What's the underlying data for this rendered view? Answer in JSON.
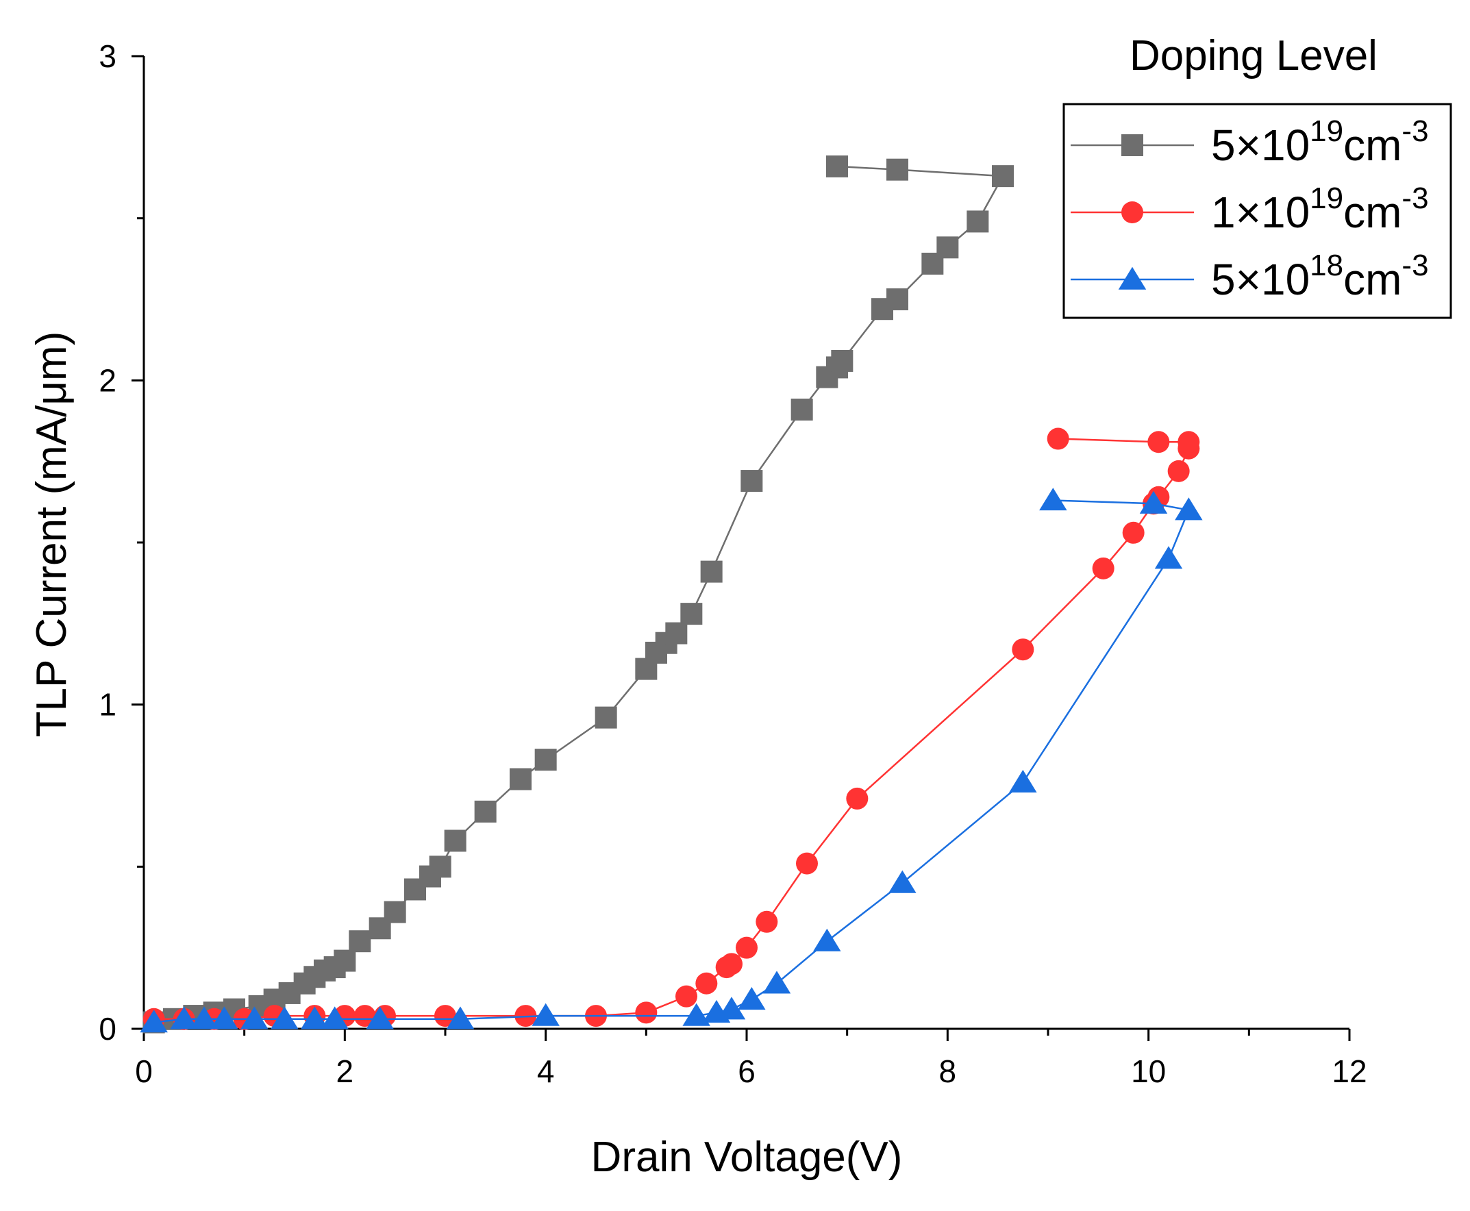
{
  "chart_data": {
    "type": "line",
    "title": "",
    "xlabel": "Drain Voltage(V)",
    "ylabel": "TLP Current (mA/μm)",
    "xlim": [
      0,
      12
    ],
    "ylim": [
      0,
      3
    ],
    "x_ticks": [
      "0",
      "2",
      "4",
      "6",
      "8",
      "10",
      "12"
    ],
    "y_ticks": [
      "0",
      "1",
      "2",
      "3"
    ],
    "legend": {
      "title": "Doping Level",
      "position": "top-right"
    },
    "series": [
      {
        "name": "5×10^19cm^-3",
        "label_base": "5×10",
        "label_exp": "19",
        "label_unit": "cm",
        "label_unit_exp": "-3",
        "color": "#6e6e6e",
        "marker": "square",
        "x": [
          0.1,
          0.3,
          0.5,
          0.7,
          0.9,
          1.15,
          1.3,
          1.45,
          1.6,
          1.7,
          1.8,
          1.9,
          2.0,
          2.15,
          2.35,
          2.5,
          2.7,
          2.85,
          2.95,
          3.1,
          3.4,
          3.75,
          4.0,
          4.6,
          5.0,
          5.1,
          5.2,
          5.3,
          5.45,
          5.65,
          6.05,
          6.55,
          6.8,
          6.9,
          6.95,
          7.35,
          7.5,
          7.85,
          8.0,
          8.3,
          8.55,
          7.5,
          6.9
        ],
        "y": [
          0.02,
          0.03,
          0.04,
          0.05,
          0.06,
          0.07,
          0.09,
          0.11,
          0.14,
          0.16,
          0.18,
          0.19,
          0.21,
          0.27,
          0.31,
          0.36,
          0.43,
          0.47,
          0.5,
          0.58,
          0.67,
          0.77,
          0.83,
          0.96,
          1.11,
          1.16,
          1.19,
          1.22,
          1.28,
          1.41,
          1.69,
          1.91,
          2.01,
          2.04,
          2.06,
          2.22,
          2.25,
          2.36,
          2.41,
          2.49,
          2.63,
          2.65,
          2.66
        ]
      },
      {
        "name": "1×10^19cm^-3",
        "label_base": "1×10",
        "label_exp": "19",
        "label_unit": "cm",
        "label_unit_exp": "-3",
        "color": "#ff3333",
        "marker": "circle",
        "x": [
          0.1,
          0.4,
          0.7,
          1.0,
          1.3,
          1.7,
          2.0,
          2.2,
          2.4,
          3.0,
          3.8,
          4.5,
          5.0,
          5.4,
          5.6,
          5.8,
          5.85,
          6.0,
          6.2,
          6.6,
          7.1,
          8.75,
          9.55,
          9.85,
          10.05,
          10.1,
          10.3,
          10.4,
          10.4,
          10.1,
          9.1
        ],
        "y": [
          0.03,
          0.03,
          0.03,
          0.03,
          0.04,
          0.04,
          0.04,
          0.04,
          0.04,
          0.04,
          0.04,
          0.04,
          0.05,
          0.1,
          0.14,
          0.19,
          0.2,
          0.25,
          0.33,
          0.51,
          0.71,
          1.17,
          1.42,
          1.53,
          1.62,
          1.64,
          1.72,
          1.79,
          1.81,
          1.81,
          1.82
        ]
      },
      {
        "name": "5×10^18cm^-3",
        "label_base": "5×10",
        "label_exp": "18",
        "label_unit": "cm",
        "label_unit_exp": "-3",
        "color": "#1a6fe0",
        "marker": "triangle",
        "x": [
          0.1,
          0.4,
          0.6,
          0.8,
          1.1,
          1.4,
          1.7,
          1.9,
          2.35,
          3.15,
          4.0,
          5.5,
          5.7,
          5.85,
          6.05,
          6.3,
          6.8,
          7.55,
          8.75,
          10.2,
          10.4,
          10.05,
          9.05
        ],
        "y": [
          0.02,
          0.03,
          0.03,
          0.03,
          0.03,
          0.03,
          0.03,
          0.03,
          0.03,
          0.03,
          0.04,
          0.04,
          0.05,
          0.06,
          0.09,
          0.14,
          0.27,
          0.45,
          0.76,
          1.45,
          1.6,
          1.62,
          1.63
        ]
      }
    ]
  }
}
